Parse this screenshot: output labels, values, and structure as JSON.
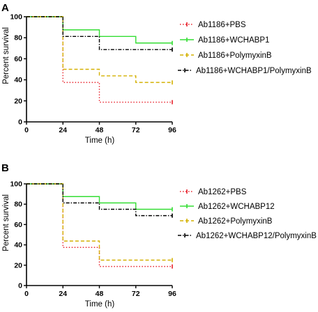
{
  "chart_data": [
    {
      "type": "line",
      "panel": "A",
      "title": "",
      "xlabel": "Time (h)",
      "ylabel": "Percent survival",
      "xlim": [
        0,
        96
      ],
      "ylim": [
        0,
        100
      ],
      "xticks": [
        0,
        24,
        48,
        72,
        96
      ],
      "yticks": [
        0,
        20,
        40,
        60,
        80,
        100
      ],
      "grid": false,
      "legend": "right",
      "series": [
        {
          "name": "Ab1186+PBS",
          "color": "#e8202a",
          "dash": "1.5,2.5",
          "steps": [
            [
              0,
              100
            ],
            [
              24,
              37.5
            ],
            [
              48,
              18.75
            ],
            [
              96,
              18.75
            ]
          ]
        },
        {
          "name": "Ab1186+WCHABP1",
          "color": "#33dd33",
          "dash": "",
          "steps": [
            [
              0,
              100
            ],
            [
              24,
              87.5
            ],
            [
              48,
              81.25
            ],
            [
              72,
              75
            ],
            [
              96,
              75
            ]
          ]
        },
        {
          "name": "Ab1186+PolymyxinB",
          "color": "#d4b000",
          "dash": "5,3",
          "steps": [
            [
              0,
              100
            ],
            [
              24,
              50
            ],
            [
              48,
              43.75
            ],
            [
              72,
              37.5
            ],
            [
              96,
              37.5
            ]
          ]
        },
        {
          "name": "Ab1186+WCHABP1/PolymyxinB",
          "color": "#000000",
          "dash": "5,2,1.5,2",
          "steps": [
            [
              0,
              100
            ],
            [
              24,
              81.25
            ],
            [
              48,
              68.75
            ],
            [
              96,
              68.75
            ]
          ]
        }
      ]
    },
    {
      "type": "line",
      "panel": "B",
      "title": "",
      "xlabel": "Time (h)",
      "ylabel": "Percent survival",
      "xlim": [
        0,
        96
      ],
      "ylim": [
        0,
        100
      ],
      "xticks": [
        0,
        24,
        48,
        72,
        96
      ],
      "yticks": [
        0,
        20,
        40,
        60,
        80,
        100
      ],
      "grid": false,
      "legend": "right",
      "series": [
        {
          "name": "Ab1262+PBS",
          "color": "#e8202a",
          "dash": "1.5,2.5",
          "steps": [
            [
              0,
              100
            ],
            [
              24,
              37.5
            ],
            [
              48,
              18.75
            ],
            [
              96,
              18.75
            ]
          ]
        },
        {
          "name": "Ab1262+WCHABP12",
          "color": "#33dd33",
          "dash": "",
          "steps": [
            [
              0,
              100
            ],
            [
              24,
              87.5
            ],
            [
              48,
              81.25
            ],
            [
              72,
              75
            ],
            [
              96,
              75
            ]
          ]
        },
        {
          "name": "Ab1262+PolymyxinB",
          "color": "#d4b000",
          "dash": "5,3",
          "steps": [
            [
              0,
              100
            ],
            [
              24,
              43.75
            ],
            [
              48,
              25
            ],
            [
              96,
              25
            ]
          ]
        },
        {
          "name": "Ab1262+WCHABP12/PolymyxinB",
          "color": "#000000",
          "dash": "5,2,1.5,2",
          "steps": [
            [
              0,
              100
            ],
            [
              24,
              81.25
            ],
            [
              48,
              75
            ],
            [
              72,
              68.75
            ],
            [
              96,
              68.75
            ]
          ]
        }
      ]
    }
  ]
}
